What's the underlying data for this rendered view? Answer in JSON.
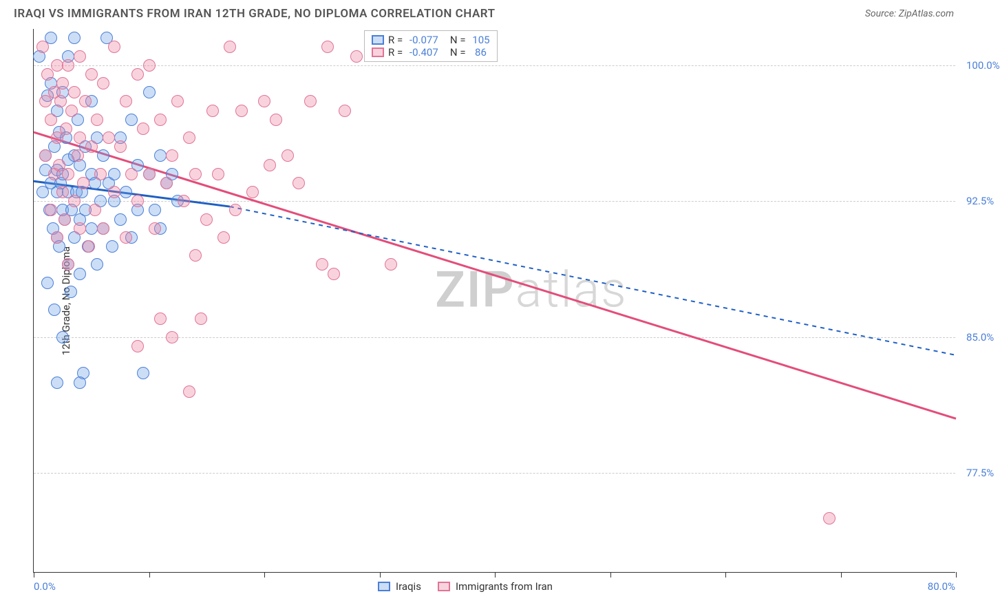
{
  "header": {
    "title": "IRAQI VS IMMIGRANTS FROM IRAN 12TH GRADE, NO DIPLOMA CORRELATION CHART",
    "source": "Source: ZipAtlas.com"
  },
  "chart": {
    "type": "scatter",
    "y_axis_title": "12th Grade, No Diploma",
    "xlim": [
      0,
      80
    ],
    "ylim": [
      72,
      102
    ],
    "x_ticks": [
      0,
      10,
      20,
      30,
      40,
      50,
      60,
      70,
      80
    ],
    "x_label_min": "0.0%",
    "x_label_max": "80.0%",
    "y_gridlines": [
      77.5,
      85.0,
      92.5,
      100.0
    ],
    "y_tick_labels": [
      "77.5%",
      "85.0%",
      "92.5%",
      "100.0%"
    ],
    "background_color": "#ffffff",
    "grid_color": "#cccccc",
    "axis_color": "#333333",
    "tick_label_color": "#4a7fd8",
    "watermark": {
      "part1": "ZIP",
      "part2": "atlas"
    },
    "series": [
      {
        "name": "Iraqis",
        "label": "Iraqis",
        "fill_color": "rgba(110,160,230,0.35)",
        "stroke_color": "#4a7fd8",
        "line_color": "#1f5fc4",
        "line_color_dashed": "#1f5fc4",
        "marker_radius": 9,
        "R": "-0.077",
        "N": "105",
        "trend_solid": {
          "x1": 0,
          "y1": 93.6,
          "x2": 17,
          "y2": 92.2
        },
        "trend_dashed": {
          "x1": 17,
          "y1": 92.2,
          "x2": 80,
          "y2": 84.0
        },
        "points": [
          [
            0.5,
            100.5
          ],
          [
            0.8,
            93.0
          ],
          [
            1.0,
            94.2
          ],
          [
            1.0,
            95.0
          ],
          [
            1.2,
            88.0
          ],
          [
            1.2,
            98.3
          ],
          [
            1.4,
            92.0
          ],
          [
            1.5,
            93.5
          ],
          [
            1.5,
            99.0
          ],
          [
            1.5,
            101.5
          ],
          [
            1.7,
            91.0
          ],
          [
            1.8,
            95.5
          ],
          [
            1.8,
            86.5
          ],
          [
            2.0,
            93.0
          ],
          [
            2.0,
            97.5
          ],
          [
            2.0,
            90.5
          ],
          [
            2.0,
            94.2
          ],
          [
            2.2,
            90.0
          ],
          [
            2.2,
            96.3
          ],
          [
            2.3,
            93.5
          ],
          [
            2.5,
            94.0
          ],
          [
            2.5,
            98.5
          ],
          [
            2.5,
            92.0
          ],
          [
            2.5,
            85.0
          ],
          [
            2.7,
            91.5
          ],
          [
            2.8,
            96.0
          ],
          [
            3.0,
            93.0
          ],
          [
            3.0,
            89.0
          ],
          [
            3.0,
            100.5
          ],
          [
            3.0,
            94.8
          ],
          [
            3.2,
            87.5
          ],
          [
            3.3,
            92.0
          ],
          [
            3.5,
            95.0
          ],
          [
            3.5,
            90.5
          ],
          [
            3.5,
            101.5
          ],
          [
            3.7,
            93.0
          ],
          [
            3.8,
            97.0
          ],
          [
            4.0,
            91.5
          ],
          [
            4.0,
            94.5
          ],
          [
            4.0,
            88.5
          ],
          [
            4.2,
            93.0
          ],
          [
            4.3,
            83.0
          ],
          [
            4.5,
            95.5
          ],
          [
            4.5,
            92.0
          ],
          [
            4.7,
            90.0
          ],
          [
            5.0,
            94.0
          ],
          [
            5.0,
            98.0
          ],
          [
            5.0,
            91.0
          ],
          [
            5.3,
            93.5
          ],
          [
            5.5,
            96.0
          ],
          [
            5.5,
            89.0
          ],
          [
            5.8,
            92.5
          ],
          [
            6.0,
            95.0
          ],
          [
            6.0,
            91.0
          ],
          [
            6.3,
            101.5
          ],
          [
            6.5,
            93.5
          ],
          [
            6.8,
            90.0
          ],
          [
            7.0,
            94.0
          ],
          [
            7.0,
            92.5
          ],
          [
            7.5,
            96.0
          ],
          [
            7.5,
            91.5
          ],
          [
            8.0,
            93.0
          ],
          [
            8.5,
            90.5
          ],
          [
            8.5,
            97.0
          ],
          [
            9.0,
            94.5
          ],
          [
            9.0,
            92.0
          ],
          [
            9.5,
            83.0
          ],
          [
            10.0,
            94.0
          ],
          [
            10.0,
            98.5
          ],
          [
            10.5,
            92.0
          ],
          [
            11.0,
            95.0
          ],
          [
            11.0,
            91.0
          ],
          [
            11.5,
            93.5
          ],
          [
            12.0,
            94.0
          ],
          [
            12.5,
            92.5
          ],
          [
            2.0,
            82.5
          ],
          [
            4.0,
            82.5
          ]
        ]
      },
      {
        "name": "Immigrants from Iran",
        "label": "Immigrants from Iran",
        "fill_color": "rgba(235,130,160,0.35)",
        "stroke_color": "#e27396",
        "line_color": "#e34d7a",
        "marker_radius": 9,
        "R": "-0.407",
        "N": "86",
        "trend_solid": {
          "x1": 0,
          "y1": 96.3,
          "x2": 80,
          "y2": 80.5
        },
        "points": [
          [
            0.8,
            101.0
          ],
          [
            1.0,
            98.0
          ],
          [
            1.0,
            95.0
          ],
          [
            1.2,
            99.5
          ],
          [
            1.5,
            97.0
          ],
          [
            1.5,
            92.0
          ],
          [
            1.8,
            98.5
          ],
          [
            1.8,
            94.0
          ],
          [
            2.0,
            100.0
          ],
          [
            2.0,
            96.0
          ],
          [
            2.0,
            90.5
          ],
          [
            2.2,
            94.5
          ],
          [
            2.3,
            98.0
          ],
          [
            2.5,
            93.0
          ],
          [
            2.5,
            99.0
          ],
          [
            2.7,
            91.5
          ],
          [
            2.8,
            96.5
          ],
          [
            3.0,
            100.0
          ],
          [
            3.0,
            94.0
          ],
          [
            3.0,
            89.0
          ],
          [
            3.3,
            97.5
          ],
          [
            3.5,
            92.5
          ],
          [
            3.5,
            98.5
          ],
          [
            3.8,
            95.0
          ],
          [
            4.0,
            100.5
          ],
          [
            4.0,
            91.0
          ],
          [
            4.0,
            96.0
          ],
          [
            4.3,
            93.5
          ],
          [
            4.5,
            98.0
          ],
          [
            4.8,
            90.0
          ],
          [
            5.0,
            95.5
          ],
          [
            5.0,
            99.5
          ],
          [
            5.3,
            92.0
          ],
          [
            5.5,
            97.0
          ],
          [
            5.8,
            94.0
          ],
          [
            6.0,
            99.0
          ],
          [
            6.0,
            91.0
          ],
          [
            6.5,
            96.0
          ],
          [
            7.0,
            101.0
          ],
          [
            7.0,
            93.0
          ],
          [
            7.5,
            95.5
          ],
          [
            8.0,
            98.0
          ],
          [
            8.0,
            90.5
          ],
          [
            8.5,
            94.0
          ],
          [
            9.0,
            99.5
          ],
          [
            9.0,
            92.5
          ],
          [
            9.5,
            96.5
          ],
          [
            10.0,
            94.0
          ],
          [
            10.0,
            100.0
          ],
          [
            10.5,
            91.0
          ],
          [
            11.0,
            97.0
          ],
          [
            11.5,
            93.5
          ],
          [
            12.0,
            95.0
          ],
          [
            12.0,
            85.0
          ],
          [
            12.5,
            98.0
          ],
          [
            13.0,
            92.5
          ],
          [
            13.5,
            96.0
          ],
          [
            14.0,
            94.0
          ],
          [
            14.0,
            89.5
          ],
          [
            14.5,
            86.0
          ],
          [
            15.0,
            91.5
          ],
          [
            15.5,
            97.5
          ],
          [
            16.0,
            94.0
          ],
          [
            16.5,
            90.5
          ],
          [
            17.0,
            101.0
          ],
          [
            17.5,
            92.0
          ],
          [
            18.0,
            97.5
          ],
          [
            19.0,
            93.0
          ],
          [
            20.0,
            98.0
          ],
          [
            20.5,
            94.5
          ],
          [
            21.0,
            97.0
          ],
          [
            22.0,
            95.0
          ],
          [
            23.0,
            93.5
          ],
          [
            24.0,
            98.0
          ],
          [
            25.0,
            89.0
          ],
          [
            25.5,
            101.0
          ],
          [
            26.0,
            88.5
          ],
          [
            27.0,
            97.5
          ],
          [
            28.0,
            100.5
          ],
          [
            31.0,
            89.0
          ],
          [
            13.5,
            82.0
          ],
          [
            9.0,
            84.5
          ],
          [
            11.0,
            86.0
          ],
          [
            69.0,
            75.0
          ]
        ]
      }
    ]
  }
}
